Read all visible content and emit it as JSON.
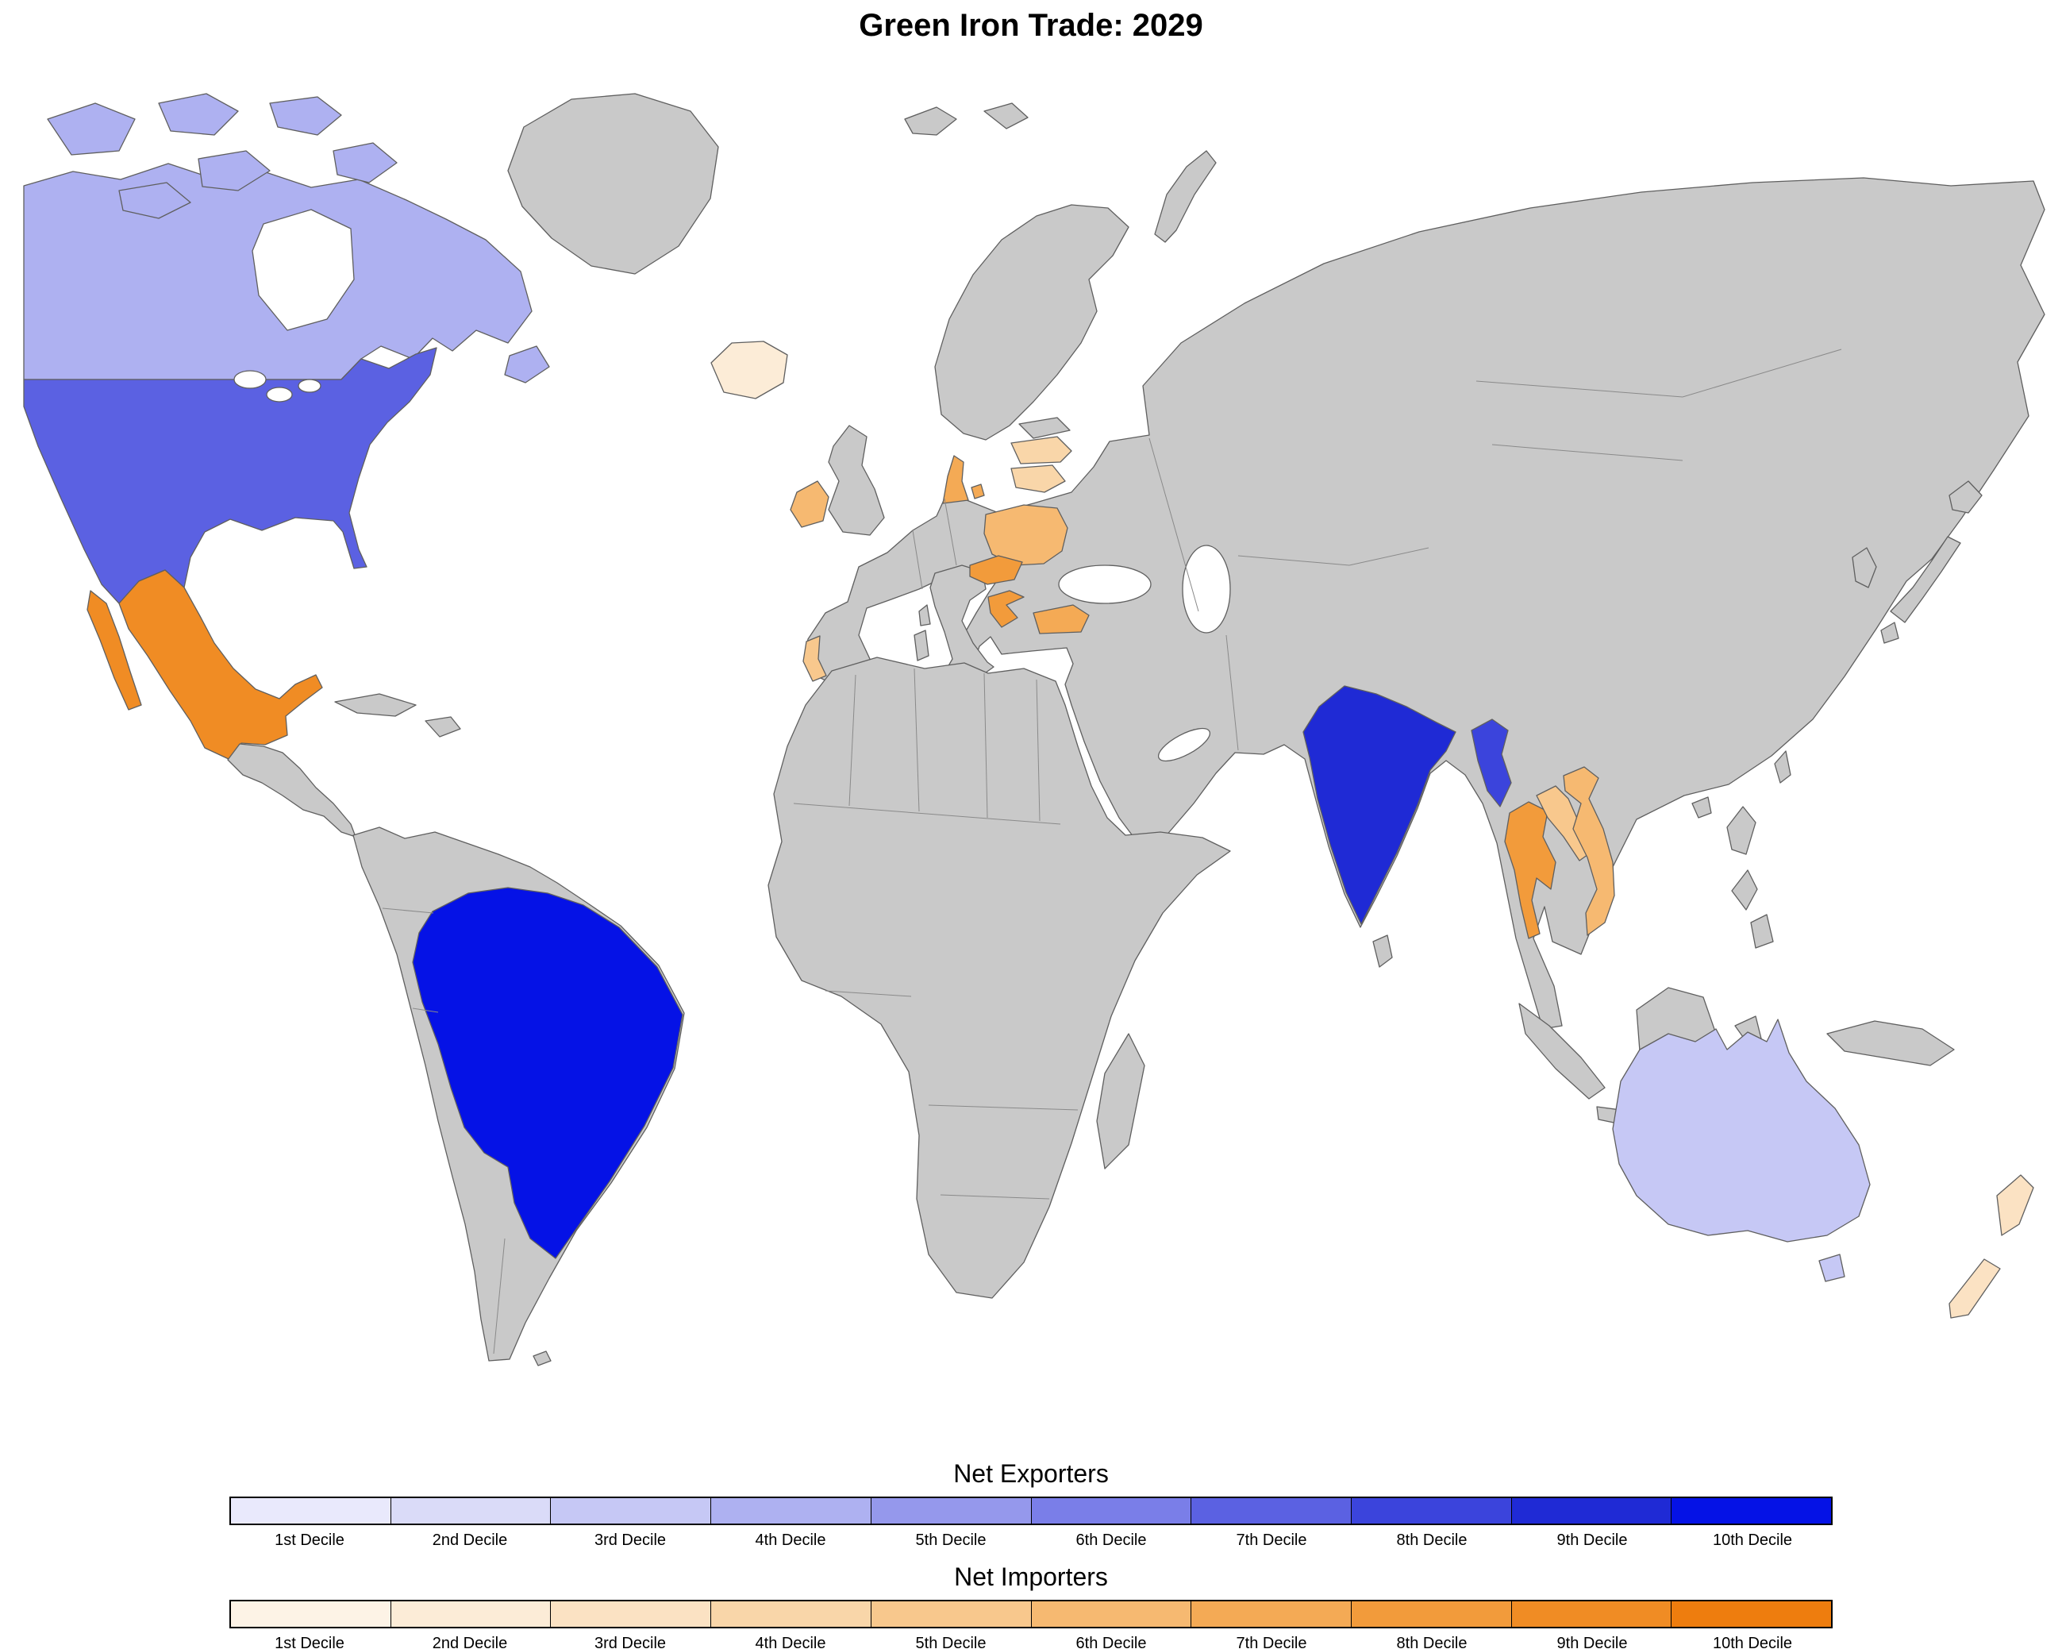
{
  "title": "Green Iron Trade: 2029",
  "map": {
    "no_data_color": "#c9c9c9",
    "border_color": "#5f5f5f",
    "ocean_color": "#ffffff",
    "countries": [
      {
        "name": "Canada",
        "group": "exporter",
        "decile": 4
      },
      {
        "name": "United States",
        "group": "exporter",
        "decile": 7
      },
      {
        "name": "Brazil",
        "group": "exporter",
        "decile": 10
      },
      {
        "name": "India",
        "group": "exporter",
        "decile": 9
      },
      {
        "name": "Myanmar",
        "group": "exporter",
        "decile": 8
      },
      {
        "name": "Australia",
        "group": "exporter",
        "decile": 3
      },
      {
        "name": "Mexico",
        "group": "importer",
        "decile": 9
      },
      {
        "name": "Iceland",
        "group": "importer",
        "decile": 2
      },
      {
        "name": "Ireland",
        "group": "importer",
        "decile": 6
      },
      {
        "name": "Portugal",
        "group": "importer",
        "decile": 5
      },
      {
        "name": "Denmark",
        "group": "importer",
        "decile": 7
      },
      {
        "name": "Poland",
        "group": "importer",
        "decile": 6
      },
      {
        "name": "Czechia",
        "group": "importer",
        "decile": 8
      },
      {
        "name": "Croatia",
        "group": "importer",
        "decile": 8
      },
      {
        "name": "Bulgaria",
        "group": "importer",
        "decile": 7
      },
      {
        "name": "Latvia",
        "group": "importer",
        "decile": 4
      },
      {
        "name": "Lithuania",
        "group": "importer",
        "decile": 4
      },
      {
        "name": "Thailand",
        "group": "importer",
        "decile": 8
      },
      {
        "name": "Laos",
        "group": "importer",
        "decile": 5
      },
      {
        "name": "Vietnam",
        "group": "importer",
        "decile": 6
      },
      {
        "name": "New Zealand",
        "group": "importer",
        "decile": 3
      }
    ]
  },
  "legend": {
    "exporters": {
      "title": "Net Exporters",
      "labels": [
        "1st Decile",
        "2nd Decile",
        "3rd Decile",
        "4th Decile",
        "5th Decile",
        "6th Decile",
        "7th Decile",
        "8th Decile",
        "9th Decile",
        "10th Decile"
      ],
      "colors": [
        "#e9e9fc",
        "#dadbf8",
        "#c6c8f5",
        "#aeb1f1",
        "#9598ec",
        "#7a7ee8",
        "#5b61e2",
        "#3b44dc",
        "#1f2ad5",
        "#0512e6"
      ]
    },
    "importers": {
      "title": "Net Importers",
      "labels": [
        "1st Decile",
        "2nd Decile",
        "3rd Decile",
        "4th Decile",
        "5th Decile",
        "6th Decile",
        "7th Decile",
        "8th Decile",
        "9th Decile",
        "10th Decile"
      ],
      "colors": [
        "#fdf3e6",
        "#fcecd7",
        "#fbe2c3",
        "#f9d6a9",
        "#f8c88d",
        "#f6b971",
        "#f4aa55",
        "#f29b3b",
        "#f08c24",
        "#ee7d0e"
      ]
    }
  },
  "chart_data": {
    "type": "choropleth",
    "title": "Green Iron Trade: 2029",
    "legend_position": "bottom",
    "net_exporters_deciles": {
      "Brazil": 10,
      "India": 9,
      "Myanmar": 8,
      "United States": 7,
      "Canada": 4,
      "Australia": 3
    },
    "net_importers_deciles": {
      "Mexico": 9,
      "Czechia": 8,
      "Croatia": 8,
      "Thailand": 8,
      "Denmark": 7,
      "Bulgaria": 7,
      "Ireland": 6,
      "Poland": 6,
      "Vietnam": 6,
      "Portugal": 5,
      "Laos": 5,
      "Latvia": 4,
      "Lithuania": 4,
      "New Zealand": 3,
      "Iceland": 2
    }
  }
}
